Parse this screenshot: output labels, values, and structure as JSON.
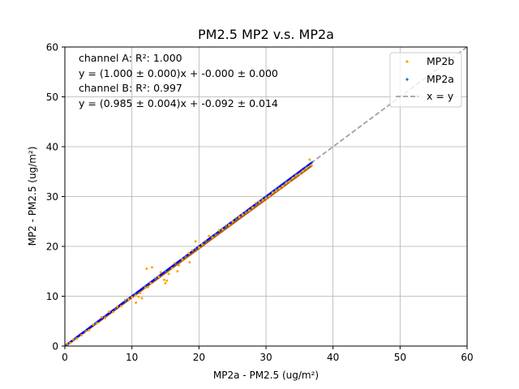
{
  "chart_data": {
    "type": "scatter",
    "title": "PM2.5 MP2 v.s. MP2a",
    "xlabel": "MP2a - PM2.5 (ug/m²)",
    "ylabel": "MP2 - PM2.5 (ug/m²)",
    "xlim": [
      0,
      60
    ],
    "ylim": [
      0,
      60
    ],
    "xticks": [
      "0",
      "10",
      "20",
      "30",
      "40",
      "50",
      "60"
    ],
    "yticks": [
      "0",
      "10",
      "20",
      "30",
      "40",
      "50",
      "60"
    ],
    "grid": true,
    "legend_placement": "top-right",
    "annotations": [
      "channel A: R²: 1.000",
      "y = (1.000 ± 0.000)x + -0.000 ± 0.000",
      "channel B: R²: 0.997",
      "y = (0.985 ± 0.004)x + -0.092 ± 0.014"
    ],
    "series": [
      {
        "name": "MP2b",
        "color": "#ffa500",
        "marker": "point",
        "points": [
          [
            0.3,
            0.4
          ],
          [
            0.8,
            0.6
          ],
          [
            1.2,
            1.3
          ],
          [
            1.8,
            1.5
          ],
          [
            2.5,
            2.2
          ],
          [
            3.1,
            3.0
          ],
          [
            3.6,
            3.2
          ],
          [
            4.2,
            4.3
          ],
          [
            4.8,
            4.6
          ],
          [
            5.5,
            5.8
          ],
          [
            6.0,
            5.6
          ],
          [
            6.6,
            6.9
          ],
          [
            7.2,
            6.8
          ],
          [
            7.8,
            7.9
          ],
          [
            8.4,
            8.0
          ],
          [
            9.0,
            9.2
          ],
          [
            9.5,
            9.4
          ],
          [
            10.0,
            9.8
          ],
          [
            10.5,
            10.1
          ],
          [
            11.0,
            9.9
          ],
          [
            11.2,
            10.6
          ],
          [
            11.5,
            9.6
          ],
          [
            12.0,
            11.7
          ],
          [
            12.4,
            11.8
          ],
          [
            12.8,
            12.6
          ],
          [
            13.0,
            15.8
          ],
          [
            13.5,
            13.6
          ],
          [
            14.0,
            13.9
          ],
          [
            14.3,
            14.8
          ],
          [
            14.8,
            13.3
          ],
          [
            15.2,
            13.1
          ],
          [
            15.5,
            14.5
          ],
          [
            16.0,
            15.6
          ],
          [
            16.4,
            16.6
          ],
          [
            17.0,
            16.2
          ],
          [
            17.5,
            17.4
          ],
          [
            18.0,
            17.9
          ],
          [
            18.5,
            18.6
          ],
          [
            19.0,
            19.2
          ],
          [
            19.5,
            21.0
          ],
          [
            20.0,
            19.8
          ],
          [
            20.5,
            20.4
          ],
          [
            21.0,
            21.1
          ],
          [
            21.5,
            22.1
          ],
          [
            22.0,
            21.8
          ],
          [
            22.5,
            22.4
          ],
          [
            23.0,
            23.2
          ],
          [
            23.5,
            23.4
          ],
          [
            24.0,
            24.1
          ],
          [
            24.5,
            24.3
          ],
          [
            25.0,
            25.0
          ],
          [
            25.5,
            25.6
          ],
          [
            26.0,
            25.9
          ],
          [
            26.5,
            26.4
          ],
          [
            27.0,
            26.9
          ],
          [
            27.5,
            27.2
          ],
          [
            28.0,
            27.8
          ],
          [
            28.5,
            28.6
          ],
          [
            29.0,
            28.9
          ],
          [
            29.5,
            29.3
          ],
          [
            30.0,
            29.7
          ],
          [
            30.5,
            30.1
          ],
          [
            31.0,
            30.8
          ],
          [
            31.5,
            31.2
          ],
          [
            32.0,
            31.6
          ],
          [
            32.5,
            32.1
          ],
          [
            33.0,
            32.7
          ],
          [
            33.5,
            33.0
          ],
          [
            34.0,
            33.7
          ],
          [
            34.5,
            34.2
          ],
          [
            35.0,
            34.5
          ],
          [
            35.5,
            35.1
          ],
          [
            36.0,
            35.7
          ],
          [
            36.5,
            37.4
          ],
          [
            36.8,
            36.3
          ],
          [
            15.0,
            12.6
          ],
          [
            16.8,
            15.0
          ],
          [
            18.6,
            16.8
          ],
          [
            12.2,
            15.5
          ],
          [
            10.6,
            8.7
          ]
        ]
      },
      {
        "name": "MP2a",
        "color": "#1f77b4",
        "marker": "point",
        "points": [
          [
            0.2,
            0.2
          ],
          [
            1.5,
            1.5
          ],
          [
            3.0,
            3.0
          ],
          [
            4.5,
            4.5
          ],
          [
            6.0,
            6.0
          ],
          [
            7.5,
            7.5
          ],
          [
            9.0,
            9.0
          ],
          [
            10.5,
            10.5
          ],
          [
            12.0,
            12.0
          ],
          [
            13.5,
            13.5
          ],
          [
            15.0,
            15.0
          ],
          [
            16.5,
            16.5
          ],
          [
            18.0,
            18.0
          ],
          [
            19.5,
            19.5
          ],
          [
            21.0,
            21.0
          ],
          [
            22.5,
            22.5
          ],
          [
            24.0,
            24.0
          ],
          [
            25.5,
            25.5
          ],
          [
            27.0,
            27.0
          ],
          [
            28.5,
            28.5
          ],
          [
            30.0,
            30.0
          ],
          [
            31.5,
            31.5
          ],
          [
            33.0,
            33.0
          ],
          [
            34.5,
            34.5
          ],
          [
            36.0,
            36.0
          ],
          [
            36.9,
            36.9
          ]
        ]
      },
      {
        "name": "x = y",
        "color": "#a0a0a0",
        "style": "dashed",
        "line": [
          [
            0,
            0
          ],
          [
            60,
            60
          ]
        ]
      }
    ],
    "fits": [
      {
        "name": "channel A fit",
        "color": "#0000ff",
        "x_range": [
          0,
          36.9
        ],
        "slope": 1.0,
        "intercept": -0.0
      },
      {
        "name": "channel B fit",
        "color": "#b25e00",
        "x_range": [
          0,
          36.9
        ],
        "slope": 0.985,
        "intercept": -0.092
      }
    ]
  }
}
